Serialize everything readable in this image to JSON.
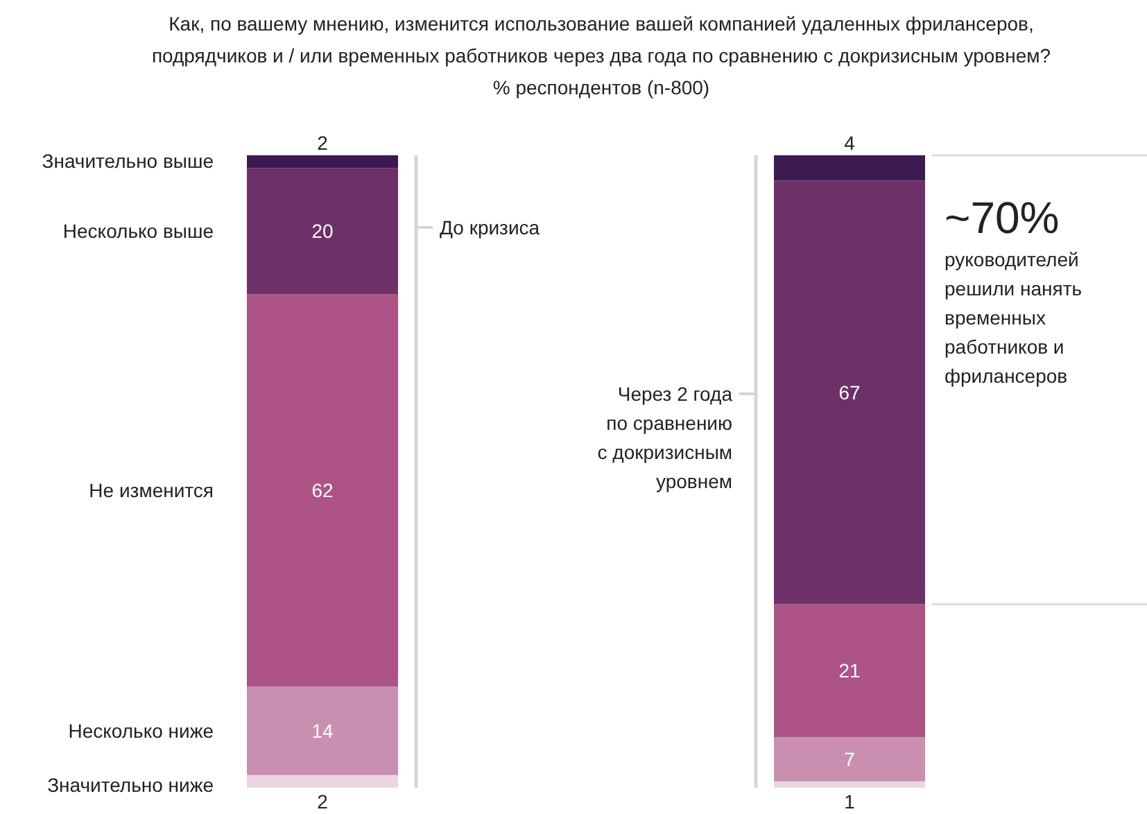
{
  "chart_data": {
    "type": "bar",
    "stacked": true,
    "title": "Как, по вашему мнению, изменится использование вашей компанией удаленных фрилансеров, подрядчиков и / или временных работников через два года по сравнению с докризисным уровнем?",
    "subtitle": "% респондентов (n-800)",
    "categories": [
      "До кризиса",
      "Через 2 года по сравнению с докризисным уровнем"
    ],
    "ylim": [
      0,
      100
    ],
    "legend": "left",
    "data_labels": true,
    "series": [
      {
        "name": "Значительно ниже",
        "color": "#ead5e2",
        "values": [
          2,
          1
        ]
      },
      {
        "name": "Несколько ниже",
        "color": "#c98eb0",
        "values": [
          14,
          7
        ]
      },
      {
        "name": "Не изменится",
        "color": "#ad5386",
        "values": [
          62,
          21
        ]
      },
      {
        "name": "Несколько выше",
        "color": "#6e3068",
        "values": [
          20,
          67
        ]
      },
      {
        "name": "Значительно выше",
        "color": "#3b1a52",
        "values": [
          2,
          4
        ]
      }
    ],
    "annotations": [
      "~70%",
      "руководителей решили нанять временных работников и фрилансеров"
    ]
  }
}
